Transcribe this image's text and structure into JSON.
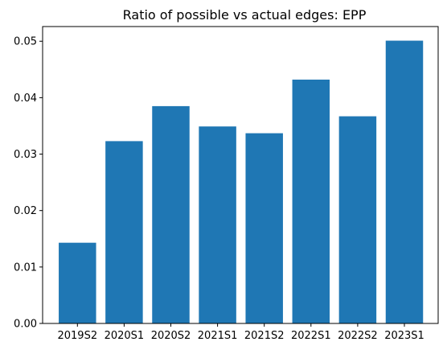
{
  "chart_data": {
    "type": "bar",
    "title": "Ratio of possible vs actual edges: EPP",
    "xlabel": "",
    "ylabel": "",
    "categories": [
      "2019S2",
      "2020S1",
      "2020S2",
      "2021S1",
      "2021S2",
      "2022S1",
      "2022S2",
      "2023S1"
    ],
    "values": [
      0.0143,
      0.0323,
      0.0385,
      0.0349,
      0.0337,
      0.0432,
      0.0367,
      0.0501
    ],
    "ylim": [
      0,
      0.0526
    ],
    "yticks": [
      0.0,
      0.01,
      0.02,
      0.03,
      0.04,
      0.05
    ],
    "ytick_labels": [
      "0.00",
      "0.01",
      "0.02",
      "0.03",
      "0.04",
      "0.05"
    ],
    "grid": false,
    "bar_color": "#1f77b4"
  }
}
